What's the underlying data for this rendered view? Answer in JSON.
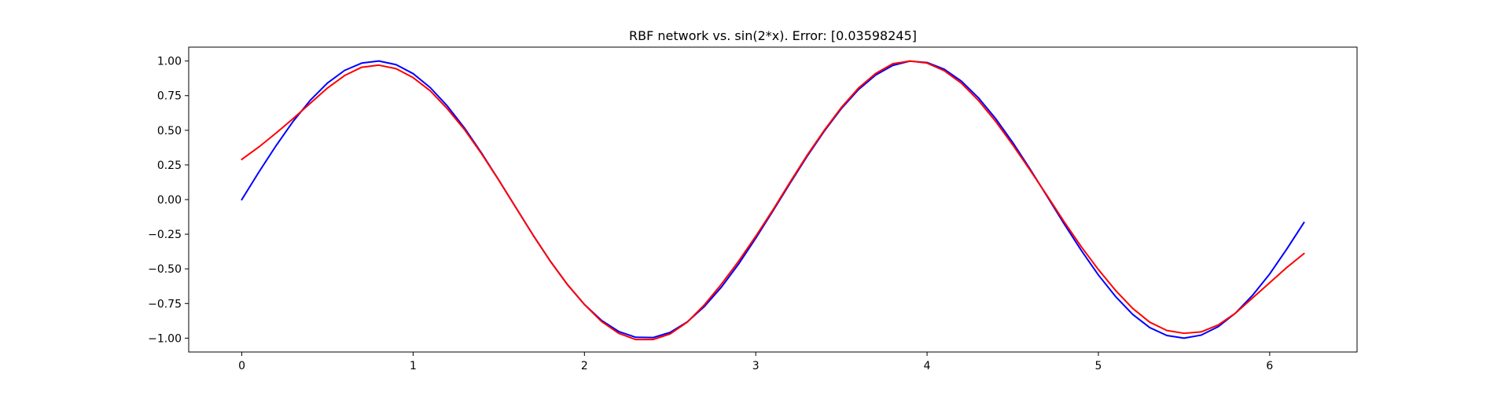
{
  "chart_data": {
    "type": "line",
    "title": "RBF network vs. sin(2*x). Error: [0.03598245]",
    "xlabel": "",
    "ylabel": "",
    "xlim": [
      -0.31,
      6.51
    ],
    "ylim": [
      -1.1,
      1.1
    ],
    "grid": false,
    "x_ticks": [
      0,
      1,
      2,
      3,
      4,
      5,
      6
    ],
    "x_tick_labels": [
      "0",
      "1",
      "2",
      "3",
      "4",
      "5",
      "6"
    ],
    "y_ticks": [
      1.0,
      0.75,
      0.5,
      0.25,
      0.0,
      -0.25,
      -0.5,
      -0.75,
      -1.0
    ],
    "y_tick_labels": [
      "1.00",
      "0.75",
      "0.50",
      "0.25",
      "0.00",
      "−0.25",
      "−0.50",
      "−0.75",
      "−1.00"
    ],
    "x": [
      0.0,
      0.1,
      0.2,
      0.3,
      0.4,
      0.5,
      0.6,
      0.7,
      0.8,
      0.9,
      1.0,
      1.1,
      1.2,
      1.3,
      1.4,
      1.5,
      1.6,
      1.7,
      1.8,
      1.9,
      2.0,
      2.1,
      2.2,
      2.3,
      2.4,
      2.5,
      2.6,
      2.7,
      2.8,
      2.9,
      3.0,
      3.1,
      3.2,
      3.3,
      3.4,
      3.5,
      3.6,
      3.7,
      3.8,
      3.9,
      4.0,
      4.1,
      4.2,
      4.3,
      4.4,
      4.5,
      4.6,
      4.7,
      4.8,
      4.9,
      5.0,
      5.1,
      5.2,
      5.3,
      5.4,
      5.5,
      5.6,
      5.7,
      5.8,
      5.9,
      6.0,
      6.1,
      6.2
    ],
    "series": [
      {
        "color": "#0000ff",
        "values": [
          0.0,
          0.199,
          0.389,
          0.565,
          0.717,
          0.841,
          0.932,
          0.985,
          1.0,
          0.974,
          0.909,
          0.808,
          0.675,
          0.516,
          0.335,
          0.141,
          -0.058,
          -0.256,
          -0.443,
          -0.612,
          -0.757,
          -0.872,
          -0.952,
          -0.994,
          -0.996,
          -0.959,
          -0.883,
          -0.772,
          -0.631,
          -0.465,
          -0.279,
          -0.083,
          0.117,
          0.312,
          0.494,
          0.657,
          0.794,
          0.899,
          0.968,
          0.999,
          0.989,
          0.941,
          0.855,
          0.734,
          0.585,
          0.412,
          0.223,
          0.025,
          -0.175,
          -0.366,
          -0.544,
          -0.699,
          -0.828,
          -0.924,
          -0.981,
          -1.0,
          -0.978,
          -0.917,
          -0.82,
          -0.691,
          -0.537,
          -0.357,
          -0.166
        ]
      },
      {
        "color": "#ff0000",
        "values": [
          0.29,
          0.38,
          0.48,
          0.585,
          0.695,
          0.805,
          0.895,
          0.955,
          0.97,
          0.945,
          0.88,
          0.785,
          0.655,
          0.505,
          0.33,
          0.14,
          -0.058,
          -0.256,
          -0.443,
          -0.612,
          -0.757,
          -0.88,
          -0.965,
          -1.01,
          -1.01,
          -0.97,
          -0.885,
          -0.76,
          -0.61,
          -0.445,
          -0.265,
          -0.075,
          0.125,
          0.32,
          0.5,
          0.665,
          0.805,
          0.91,
          0.98,
          1.0,
          0.985,
          0.93,
          0.84,
          0.715,
          0.565,
          0.395,
          0.215,
          0.03,
          -0.16,
          -0.34,
          -0.505,
          -0.655,
          -0.785,
          -0.885,
          -0.945,
          -0.965,
          -0.955,
          -0.905,
          -0.82,
          -0.71,
          -0.6,
          -0.49,
          -0.39
        ]
      }
    ]
  }
}
